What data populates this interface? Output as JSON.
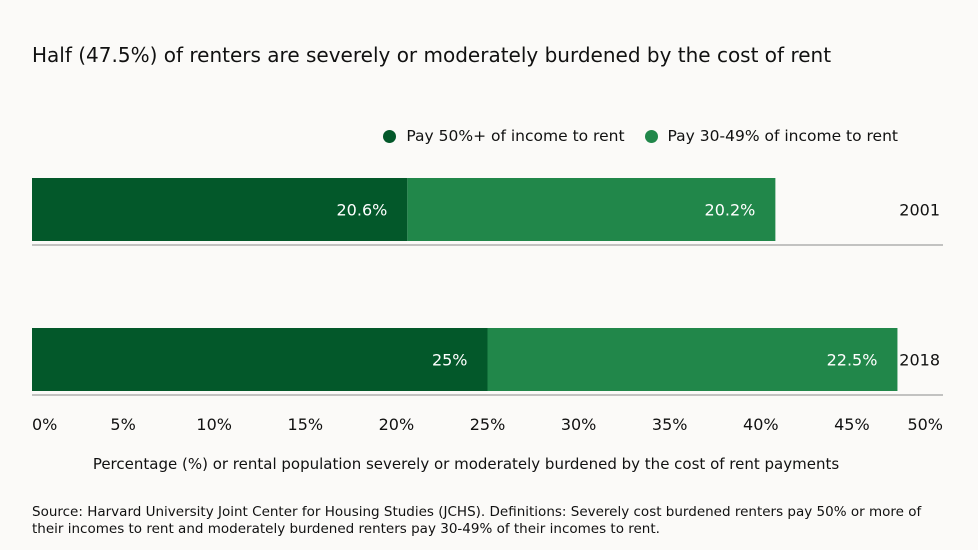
{
  "chart_data": {
    "type": "bar",
    "orientation": "horizontal",
    "stacked": true,
    "title": "Half (47.5%) of renters are severely or moderately burdened by the cost of rent",
    "categories": [
      "2001",
      "2018"
    ],
    "series": [
      {
        "name": "Pay 50%+ of income to rent",
        "values": [
          20.6,
          25
        ],
        "labels": [
          "20.6%",
          "25%"
        ],
        "color": "#03582a"
      },
      {
        "name": "Pay 30-49% of income to rent",
        "values": [
          20.2,
          22.5
        ],
        "labels": [
          "20.2%",
          "22.5%"
        ],
        "color": "#21874a"
      }
    ],
    "xlim": [
      0,
      50
    ],
    "xticks": [
      0,
      5,
      10,
      15,
      20,
      25,
      30,
      35,
      40,
      45,
      50
    ],
    "xtick_labels": [
      "0%",
      "5%",
      "10%",
      "15%",
      "20%",
      "25%",
      "30%",
      "35%",
      "40%",
      "45%",
      "50%"
    ],
    "xlabel": "Percentage (%) or rental population severely or moderately burdened by the cost of rent payments",
    "legend_position": "top-right"
  },
  "source": "Source: Harvard University Joint Center for Housing Studies (JCHS). Definitions: Severely cost burdened renters pay 50% or more of their incomes to rent and moderately burdened renters pay 30-49% of their incomes to rent."
}
